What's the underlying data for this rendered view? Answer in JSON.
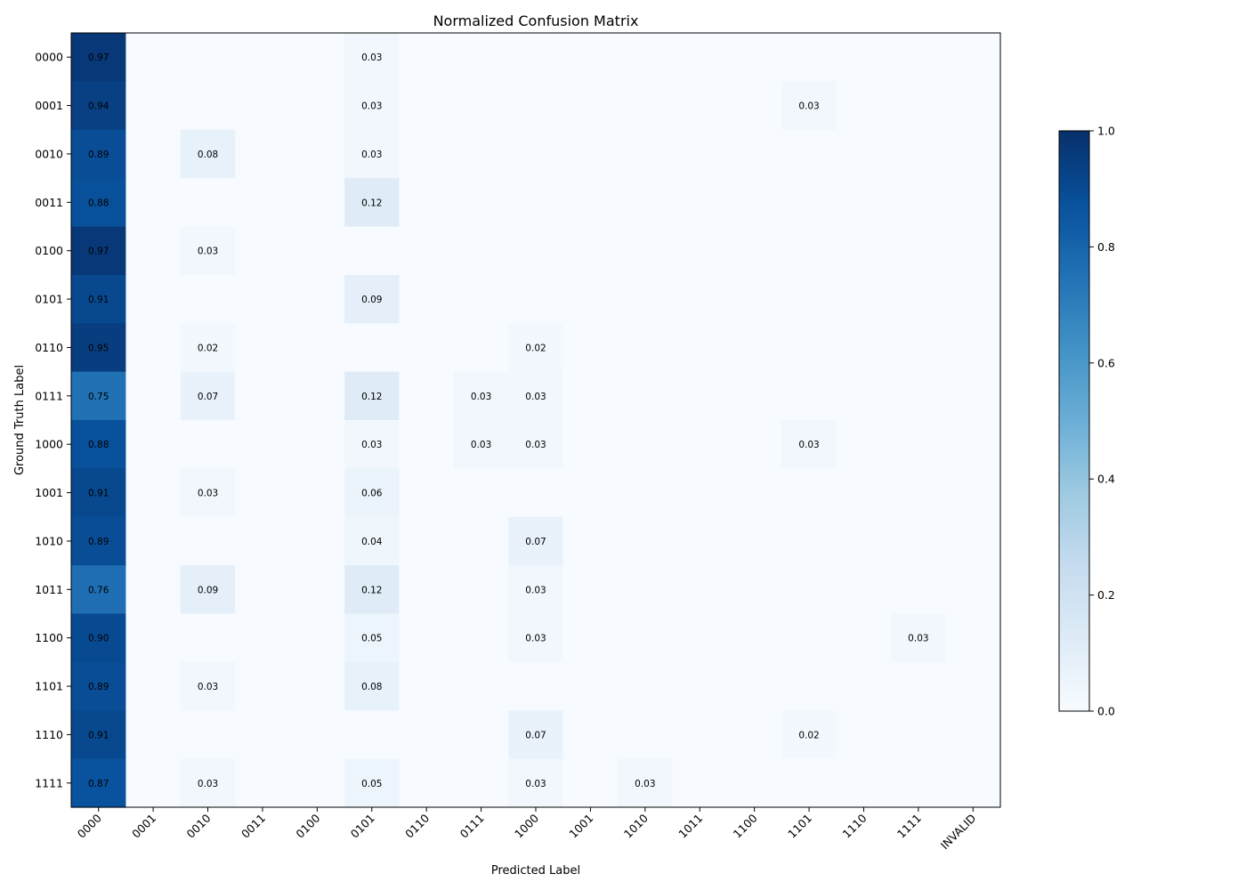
{
  "chart_data": {
    "type": "heatmap",
    "title": "Normalized Confusion Matrix",
    "xlabel": "Predicted Label",
    "ylabel": "Ground Truth Label",
    "x_categories": [
      "0000",
      "0001",
      "0010",
      "0011",
      "0100",
      "0101",
      "0110",
      "0111",
      "1000",
      "1001",
      "1010",
      "1011",
      "1100",
      "1101",
      "1110",
      "1111",
      "INVALID"
    ],
    "y_categories": [
      "0000",
      "0001",
      "0010",
      "0011",
      "0100",
      "0101",
      "0110",
      "0111",
      "1000",
      "1001",
      "1010",
      "1011",
      "1100",
      "1101",
      "1110",
      "1111"
    ],
    "values": [
      [
        0.97,
        0,
        0,
        0,
        0,
        0.03,
        0,
        0,
        0,
        0,
        0,
        0,
        0,
        0,
        0,
        0,
        0
      ],
      [
        0.94,
        0,
        0,
        0,
        0,
        0.03,
        0,
        0,
        0,
        0,
        0,
        0,
        0,
        0.03,
        0,
        0,
        0
      ],
      [
        0.89,
        0,
        0.08,
        0,
        0,
        0.03,
        0,
        0,
        0,
        0,
        0,
        0,
        0,
        0,
        0,
        0,
        0
      ],
      [
        0.88,
        0,
        0,
        0,
        0,
        0.12,
        0,
        0,
        0,
        0,
        0,
        0,
        0,
        0,
        0,
        0,
        0
      ],
      [
        0.97,
        0,
        0.03,
        0,
        0,
        0,
        0,
        0,
        0,
        0,
        0,
        0,
        0,
        0,
        0,
        0,
        0
      ],
      [
        0.91,
        0,
        0,
        0,
        0,
        0.09,
        0,
        0,
        0,
        0,
        0,
        0,
        0,
        0,
        0,
        0,
        0
      ],
      [
        0.95,
        0,
        0.02,
        0,
        0,
        0,
        0,
        0,
        0.02,
        0,
        0,
        0,
        0,
        0,
        0,
        0,
        0
      ],
      [
        0.75,
        0,
        0.07,
        0,
        0,
        0.12,
        0,
        0.03,
        0.03,
        0,
        0,
        0,
        0,
        0,
        0,
        0,
        0
      ],
      [
        0.88,
        0,
        0,
        0,
        0,
        0.03,
        0,
        0.03,
        0.03,
        0,
        0,
        0,
        0,
        0.03,
        0,
        0,
        0
      ],
      [
        0.91,
        0,
        0.03,
        0,
        0,
        0.06,
        0,
        0,
        0,
        0,
        0,
        0,
        0,
        0,
        0,
        0,
        0
      ],
      [
        0.89,
        0,
        0,
        0,
        0,
        0.04,
        0,
        0,
        0.07,
        0,
        0,
        0,
        0,
        0,
        0,
        0,
        0
      ],
      [
        0.76,
        0,
        0.09,
        0,
        0,
        0.12,
        0,
        0,
        0.03,
        0,
        0,
        0,
        0,
        0,
        0,
        0,
        0
      ],
      [
        0.9,
        0,
        0,
        0,
        0,
        0.05,
        0,
        0,
        0.03,
        0,
        0,
        0,
        0,
        0,
        0,
        0.03,
        0
      ],
      [
        0.89,
        0,
        0.03,
        0,
        0,
        0.08,
        0,
        0,
        0,
        0,
        0,
        0,
        0,
        0,
        0,
        0,
        0
      ],
      [
        0.91,
        0,
        0,
        0,
        0,
        0,
        0,
        0,
        0.07,
        0,
        0,
        0,
        0,
        0.02,
        0,
        0,
        0
      ],
      [
        0.87,
        0,
        0.03,
        0,
        0,
        0.05,
        0,
        0,
        0.03,
        0,
        0.03,
        0,
        0,
        0,
        0,
        0,
        0
      ]
    ],
    "value_format_decimals": 2,
    "hide_zero_labels": true,
    "colormap": "Blues",
    "colorbar": {
      "range": [
        0.0,
        1.0
      ],
      "ticks": [
        "0.0",
        "0.2",
        "0.4",
        "0.6",
        "0.8",
        "1.0"
      ],
      "placement": "right"
    },
    "grid": false
  }
}
